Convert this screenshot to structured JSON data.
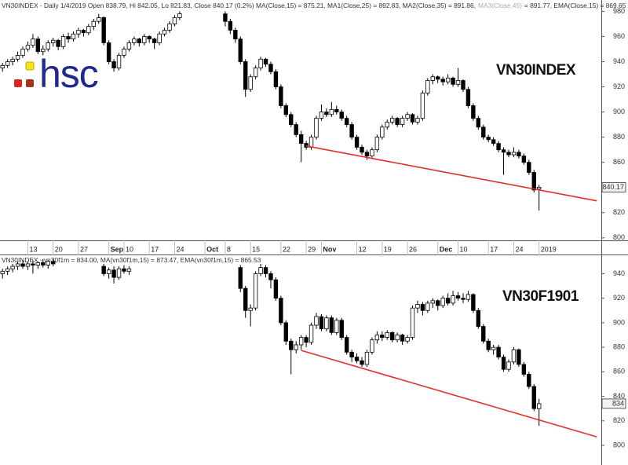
{
  "chart_data": [
    {
      "type": "candlestick",
      "title": "VN30INDEX",
      "logo": "hsc",
      "header": [
        "VN30INDEX - Daily 1/4/2019 Open 838.79, Hi 842.05, Lo 821.83, Close 840.17 (0.2%) MA(Close,15) = 875.21, MA1(Close,25) = 892.83, MA2(Close,35) = 891.86,",
        "MA3(Close,45)",
        "= 891.77, EMA(Close,15) = 869.65"
      ],
      "xlim": [
        -0.5,
        118.3
      ],
      "ylim": [
        798,
        989
      ],
      "yticks": [
        800,
        820,
        840,
        860,
        880,
        900,
        920,
        940,
        960,
        980
      ],
      "xticks": [
        {
          "value": 5,
          "label": "13"
        },
        {
          "value": 10,
          "label": "20"
        },
        {
          "value": 15,
          "label": "27"
        },
        {
          "value": 21,
          "label": "Sep"
        },
        {
          "value": 24,
          "label": "10"
        },
        {
          "value": 29,
          "label": "17"
        },
        {
          "value": 34,
          "label": "24"
        },
        {
          "value": 40,
          "label": "Oct"
        },
        {
          "value": 44,
          "label": "8"
        },
        {
          "value": 49,
          "label": "15"
        },
        {
          "value": 55,
          "label": "22"
        },
        {
          "value": 60,
          "label": "29"
        },
        {
          "value": 63,
          "label": "Nov"
        },
        {
          "value": 70,
          "label": "12"
        },
        {
          "value": 75,
          "label": "19"
        },
        {
          "value": 80,
          "label": "26"
        },
        {
          "value": 86,
          "label": "Dec"
        },
        {
          "value": 90,
          "label": "10"
        },
        {
          "value": 96,
          "label": "17"
        },
        {
          "value": 101,
          "label": "24"
        },
        {
          "value": 106,
          "label": "2019"
        }
      ],
      "last": 840.17,
      "trendline": {
        "x": [
          60,
          117.4
        ],
        "values": [
          873,
          829.4
        ],
        "color": "#e0302a"
      },
      "ohlc": [
        [
          935,
          939,
          932,
          937
        ],
        [
          937,
          942,
          935,
          940
        ],
        [
          940,
          944,
          937,
          942
        ],
        [
          942,
          948,
          940,
          945
        ],
        [
          945,
          952,
          943,
          950
        ],
        [
          950,
          956,
          948,
          953
        ],
        [
          953,
          962,
          951,
          958
        ],
        [
          958,
          960,
          946,
          948
        ],
        [
          948,
          953,
          945,
          950
        ],
        [
          950,
          957,
          948,
          955
        ],
        [
          955,
          959,
          952,
          957
        ],
        [
          957,
          958,
          949,
          952
        ],
        [
          952,
          962,
          950,
          960
        ],
        [
          960,
          963,
          955,
          958
        ],
        [
          958,
          964,
          956,
          962
        ],
        [
          962,
          967,
          959,
          965
        ],
        [
          965,
          966,
          960,
          963
        ],
        [
          963,
          970,
          961,
          968
        ],
        [
          968,
          974,
          965,
          972
        ],
        [
          972,
          978,
          970,
          975
        ],
        [
          975,
          976,
          953,
          955
        ],
        [
          955,
          957,
          938,
          940
        ],
        [
          940,
          942,
          932,
          935
        ],
        [
          935,
          947,
          933,
          945
        ],
        [
          945,
          952,
          943,
          950
        ],
        [
          950,
          957,
          948,
          955
        ],
        [
          955,
          960,
          953,
          958
        ],
        [
          958,
          959,
          952,
          955
        ],
        [
          955,
          962,
          953,
          960
        ],
        [
          960,
          961,
          955,
          958
        ],
        [
          958,
          959,
          950,
          955
        ],
        [
          955,
          964,
          953,
          962
        ],
        [
          962,
          967,
          960,
          965
        ],
        [
          965,
          972,
          963,
          970
        ],
        [
          970,
          977,
          968,
          975
        ],
        [
          975,
          980,
          973,
          978
        ],
        null,
        null,
        null,
        null,
        null,
        null,
        null,
        null,
        [
          978,
          980,
          968,
          972
        ],
        [
          972,
          974,
          962,
          965
        ],
        [
          965,
          967,
          955,
          958
        ],
        [
          958,
          960,
          938,
          940
        ],
        [
          940,
          942,
          912,
          918
        ],
        [
          918,
          930,
          916,
          928
        ],
        [
          928,
          937,
          926,
          935
        ],
        [
          935,
          944,
          933,
          942
        ],
        [
          942,
          943,
          936,
          938
        ],
        [
          938,
          940,
          930,
          932
        ],
        [
          932,
          934,
          918,
          920
        ],
        [
          920,
          922,
          903,
          905
        ],
        [
          905,
          907,
          896,
          898
        ],
        [
          898,
          900,
          888,
          890
        ],
        [
          890,
          892,
          880,
          882
        ],
        [
          882,
          885,
          860,
          875
        ],
        [
          875,
          877,
          870,
          872
        ],
        [
          872,
          882,
          870,
          880
        ],
        [
          880,
          897,
          878,
          895
        ],
        [
          895,
          906,
          893,
          900
        ],
        [
          900,
          903,
          896,
          898
        ],
        [
          898,
          908,
          896,
          902
        ],
        [
          902,
          905,
          898,
          900
        ],
        [
          900,
          902,
          893,
          895
        ],
        [
          895,
          897,
          888,
          890
        ],
        [
          890,
          892,
          878,
          880
        ],
        [
          880,
          882,
          870,
          872
        ],
        [
          872,
          874,
          866,
          868
        ],
        [
          868,
          870,
          862,
          865
        ],
        [
          865,
          872,
          863,
          870
        ],
        [
          870,
          882,
          868,
          880
        ],
        [
          880,
          890,
          878,
          888
        ],
        [
          888,
          894,
          886,
          892
        ],
        [
          892,
          897,
          890,
          895
        ],
        [
          895,
          896,
          888,
          890
        ],
        [
          890,
          897,
          888,
          895
        ],
        [
          895,
          900,
          893,
          898
        ],
        [
          898,
          899,
          890,
          892
        ],
        [
          892,
          897,
          890,
          895
        ],
        [
          895,
          917,
          893,
          915
        ],
        [
          915,
          927,
          913,
          925
        ],
        [
          925,
          930,
          922,
          928
        ],
        [
          928,
          929,
          923,
          926
        ],
        [
          926,
          928,
          921,
          924
        ],
        [
          924,
          930,
          922,
          927
        ],
        [
          927,
          928,
          920,
          922
        ],
        [
          922,
          935,
          920,
          925
        ],
        [
          925,
          926,
          916,
          918
        ],
        [
          918,
          920,
          903,
          905
        ],
        [
          905,
          907,
          893,
          895
        ],
        [
          895,
          897,
          886,
          888
        ],
        [
          888,
          890,
          878,
          880
        ],
        [
          880,
          882,
          876,
          878
        ],
        [
          878,
          880,
          873,
          875
        ],
        [
          875,
          877,
          868,
          870
        ],
        [
          870,
          872,
          850,
          868
        ],
        [
          868,
          870,
          864,
          866
        ],
        [
          866,
          872,
          864,
          868
        ],
        [
          868,
          870,
          863,
          865
        ],
        [
          865,
          867,
          858,
          860
        ],
        [
          860,
          862,
          850,
          852
        ],
        [
          852,
          854,
          836,
          838
        ],
        [
          838.79,
          842.05,
          821.83,
          840.17
        ]
      ]
    },
    {
      "type": "candlestick",
      "title": "VN30F1901",
      "header": [
        "VN30INDEX - vn30f1m = 834.00, MA(vn30f1m,15) = 873.47, EMA(vn30f1m,15) = 865.53"
      ],
      "xlim": [
        -0.5,
        118.3
      ],
      "ylim": [
        784,
        955
      ],
      "yticks": [
        800,
        820,
        840,
        860,
        880,
        900,
        920,
        940
      ],
      "last": 834,
      "trendline": {
        "x": [
          59,
          117.4
        ],
        "values": [
          877.4,
          807
        ],
        "color": "#e0302a"
      },
      "ohlc": [
        [
          940,
          944,
          936,
          942
        ],
        [
          942,
          946,
          939,
          944
        ],
        [
          944,
          948,
          941,
          946
        ],
        [
          946,
          950,
          943,
          948
        ],
        [
          948,
          951,
          944,
          946
        ],
        [
          946,
          950,
          943,
          948
        ],
        [
          948,
          951,
          940,
          947
        ],
        [
          947,
          950,
          944,
          949
        ],
        [
          949,
          952,
          945,
          947
        ],
        [
          947,
          951,
          944,
          950
        ],
        [
          950,
          952,
          946,
          948
        ],
        null,
        null,
        null,
        null,
        null,
        null,
        null,
        null,
        null,
        [
          946,
          948,
          938,
          940
        ],
        [
          940,
          945,
          936,
          943
        ],
        [
          943,
          946,
          932,
          937
        ],
        [
          937,
          946,
          935,
          944
        ],
        [
          944,
          947,
          940,
          942
        ],
        [
          942,
          946,
          939,
          944
        ],
        null,
        null,
        null,
        null,
        null,
        null,
        null,
        null,
        null,
        null,
        null,
        null,
        null,
        null,
        null,
        null,
        null,
        null,
        null,
        null,
        null,
        [
          945,
          947,
          925,
          928
        ],
        [
          928,
          930,
          904,
          910
        ],
        [
          910,
          915,
          897,
          912
        ],
        [
          912,
          942,
          910,
          940
        ],
        [
          940,
          948,
          938,
          945
        ],
        [
          945,
          947,
          937,
          940
        ],
        [
          940,
          942,
          928,
          935
        ],
        [
          935,
          937,
          918,
          920
        ],
        [
          920,
          922,
          898,
          900
        ],
        [
          900,
          902,
          882,
          885
        ],
        [
          885,
          887,
          858,
          878
        ],
        [
          878,
          885,
          875,
          882
        ],
        [
          882,
          890,
          878,
          888
        ],
        [
          888,
          890,
          880,
          884
        ],
        [
          884,
          900,
          882,
          898
        ],
        [
          898,
          908,
          895,
          905
        ],
        [
          905,
          907,
          893,
          895
        ],
        [
          895,
          906,
          893,
          904
        ],
        [
          904,
          906,
          890,
          892
        ],
        [
          892,
          904,
          890,
          902
        ],
        [
          902,
          904,
          886,
          888
        ],
        [
          888,
          890,
          874,
          876
        ],
        [
          876,
          878,
          868,
          872
        ],
        [
          872,
          875,
          867,
          869
        ],
        [
          869,
          872,
          864,
          866
        ],
        [
          866,
          878,
          864,
          876
        ],
        [
          876,
          888,
          874,
          886
        ],
        [
          886,
          893,
          883,
          890
        ],
        [
          890,
          893,
          885,
          888
        ],
        [
          888,
          894,
          886,
          892
        ],
        [
          892,
          893,
          884,
          886
        ],
        [
          886,
          892,
          884,
          890
        ],
        [
          890,
          891,
          882,
          885
        ],
        [
          885,
          890,
          883,
          888
        ],
        [
          888,
          914,
          886,
          912
        ],
        [
          912,
          918,
          908,
          915
        ],
        [
          915,
          917,
          906,
          910
        ],
        [
          910,
          918,
          908,
          916
        ],
        [
          916,
          920,
          912,
          918
        ],
        [
          918,
          919,
          910,
          914
        ],
        [
          914,
          922,
          912,
          920
        ],
        [
          920,
          924,
          914,
          916
        ],
        [
          916,
          926,
          914,
          922
        ],
        [
          922,
          925,
          918,
          920
        ],
        [
          920,
          924,
          916,
          919
        ],
        [
          919,
          926,
          917,
          923
        ],
        [
          923,
          924,
          908,
          910
        ],
        [
          910,
          912,
          895,
          897
        ],
        [
          897,
          899,
          883,
          885
        ],
        [
          885,
          887,
          876,
          878
        ],
        [
          878,
          882,
          874,
          880
        ],
        [
          880,
          882,
          870,
          872
        ],
        [
          872,
          874,
          860,
          862
        ],
        [
          862,
          870,
          860,
          868
        ],
        [
          868,
          880,
          866,
          878
        ],
        [
          878,
          879,
          864,
          866
        ],
        [
          866,
          868,
          856,
          858
        ],
        [
          858,
          860,
          846,
          848
        ],
        [
          848,
          850,
          828,
          830
        ],
        [
          830,
          838,
          816,
          834
        ]
      ]
    }
  ]
}
